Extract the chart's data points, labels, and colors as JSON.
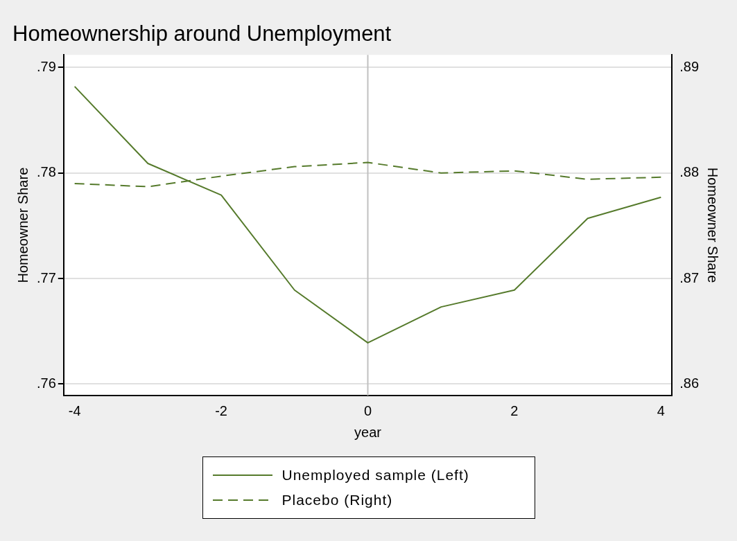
{
  "chart_data": {
    "type": "line",
    "title": "Homeownership around Unemployment",
    "xlabel": "year",
    "ylabel": "Homeowner Share",
    "y2label": "Homeowner Share",
    "x": [
      -4,
      -3,
      -2,
      -1,
      0,
      1,
      2,
      3,
      4
    ],
    "xlim": [
      -4.15,
      4.15
    ],
    "xticks": [
      -4,
      -2,
      0,
      2,
      4
    ],
    "ylim": [
      0.7589,
      0.7912
    ],
    "yticks": [
      {
        "value": 0.76,
        "label": ".76"
      },
      {
        "value": 0.77,
        "label": ".77"
      },
      {
        "value": 0.78,
        "label": ".78"
      },
      {
        "value": 0.79,
        "label": ".79"
      }
    ],
    "y2lim": [
      0.8589,
      0.8912
    ],
    "y2ticks": [
      {
        "value": 0.86,
        "label": ".86"
      },
      {
        "value": 0.87,
        "label": ".87"
      },
      {
        "value": 0.88,
        "label": ".88"
      },
      {
        "value": 0.89,
        "label": ".89"
      }
    ],
    "series": [
      {
        "name": "Unemployed sample (Left)",
        "color": "#557a2b",
        "line_style": "solid",
        "values": [
          0.7882,
          0.7809,
          0.7779,
          0.7689,
          0.7639,
          0.7673,
          0.7689,
          0.7757,
          0.7777
        ]
      },
      {
        "name": "Placebo (Right)",
        "color": "#557a2b",
        "line_style": "dashed",
        "axis": "y2",
        "values": [
          0.879,
          0.8787,
          0.8797,
          0.8806,
          0.881,
          0.88,
          0.8802,
          0.8794,
          0.8796
        ]
      }
    ],
    "ref_lines": [
      {
        "axis": "x",
        "value": 0,
        "color": "#c0c0c0"
      }
    ],
    "grid": "y",
    "legend": "bottom",
    "marker": "none"
  }
}
